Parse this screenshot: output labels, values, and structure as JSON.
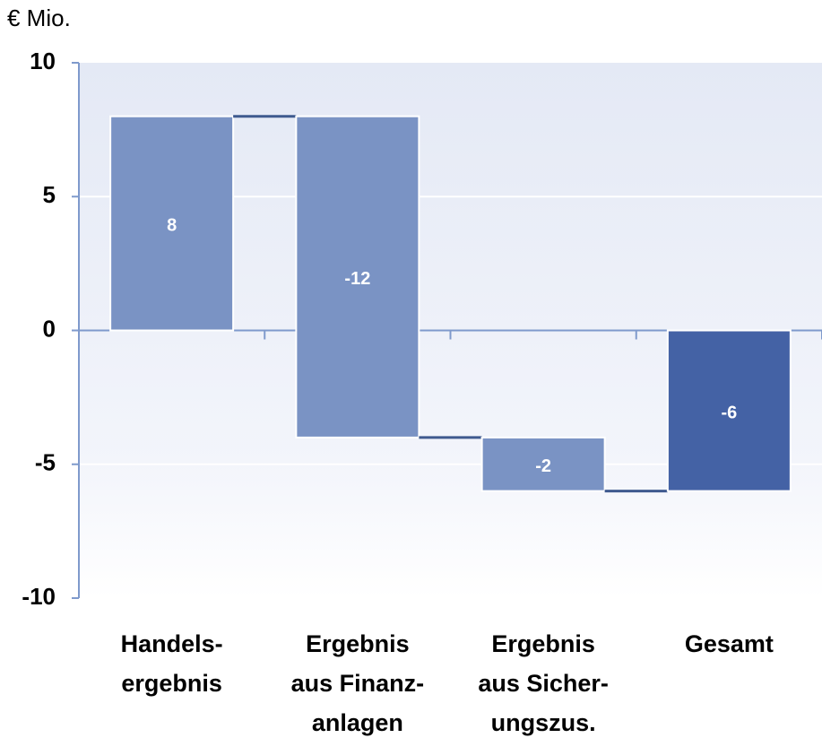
{
  "chart_data": {
    "type": "waterfall",
    "y_label": "€ Mio.",
    "categories": [
      [
        "Handels-",
        "ergebnis"
      ],
      [
        "Ergebnis",
        "aus Finanz-",
        "anlagen"
      ],
      [
        "Ergebnis",
        "aus Sicher-",
        "ungszus."
      ],
      [
        "Gesamt"
      ]
    ],
    "values": [
      8,
      -12,
      -2,
      -6
    ],
    "totals": [
      false,
      false,
      false,
      true
    ],
    "colors": [
      "#7a93c4",
      "#7a93c4",
      "#7a93c4",
      "#4462a5"
    ],
    "ylim": [
      -10,
      10
    ],
    "yticks": [
      -10,
      -5,
      0,
      5,
      10
    ],
    "grid": true
  }
}
